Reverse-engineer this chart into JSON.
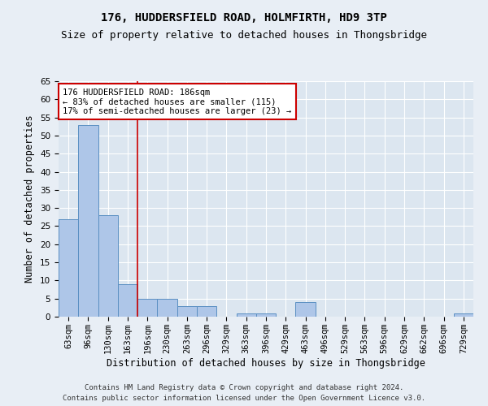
{
  "title": "176, HUDDERSFIELD ROAD, HOLMFIRTH, HD9 3TP",
  "subtitle": "Size of property relative to detached houses in Thongsbridge",
  "xlabel": "Distribution of detached houses by size in Thongsbridge",
  "ylabel": "Number of detached properties",
  "footer_line1": "Contains HM Land Registry data © Crown copyright and database right 2024.",
  "footer_line2": "Contains public sector information licensed under the Open Government Licence v3.0.",
  "categories": [
    "63sqm",
    "96sqm",
    "130sqm",
    "163sqm",
    "196sqm",
    "230sqm",
    "263sqm",
    "296sqm",
    "329sqm",
    "363sqm",
    "396sqm",
    "429sqm",
    "463sqm",
    "496sqm",
    "529sqm",
    "563sqm",
    "596sqm",
    "629sqm",
    "662sqm",
    "696sqm",
    "729sqm"
  ],
  "values": [
    27,
    53,
    28,
    9,
    5,
    5,
    3,
    3,
    0,
    1,
    1,
    0,
    4,
    0,
    0,
    0,
    0,
    0,
    0,
    0,
    1
  ],
  "bar_color": "#aec6e8",
  "bar_edge_color": "#5a8fc2",
  "vline_x": 3.5,
  "vline_color": "#cc0000",
  "annotation_text": "176 HUDDERSFIELD ROAD: 186sqm\n← 83% of detached houses are smaller (115)\n17% of semi-detached houses are larger (23) →",
  "annotation_box_color": "#ffffff",
  "annotation_box_edge": "#cc0000",
  "ylim": [
    0,
    65
  ],
  "yticks": [
    0,
    5,
    10,
    15,
    20,
    25,
    30,
    35,
    40,
    45,
    50,
    55,
    60,
    65
  ],
  "bg_color": "#e8eef5",
  "plot_bg_color": "#dce6f0",
  "title_fontsize": 10,
  "subtitle_fontsize": 9,
  "axis_label_fontsize": 8.5,
  "tick_fontsize": 7.5,
  "footer_fontsize": 6.5,
  "annotation_fontsize": 7.5
}
